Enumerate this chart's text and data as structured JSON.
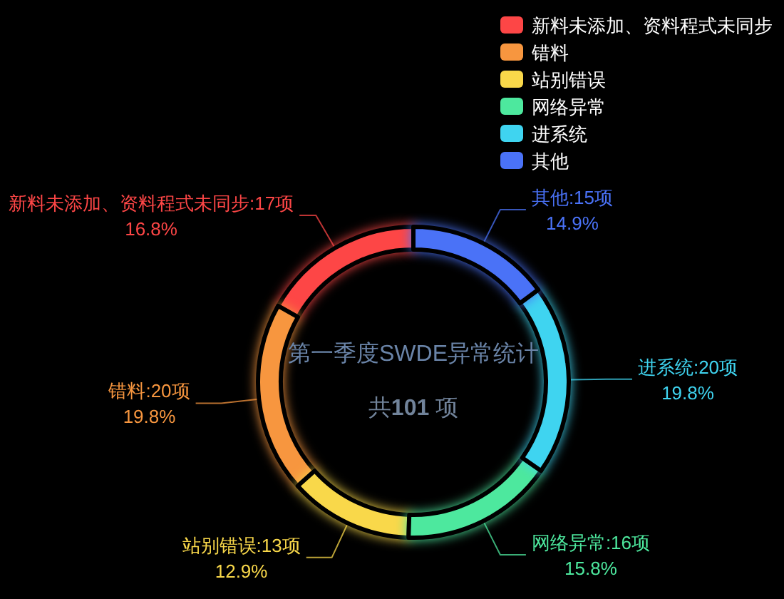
{
  "chart_data": {
    "type": "donut",
    "title": "第一季度SWDE异常统计",
    "subtitle": "共**101** 项",
    "categories": [
      "新料未添加、资料程式未同步",
      "错料",
      "站别错误",
      "网络异常",
      "进系统",
      "其他"
    ],
    "values": [
      17,
      20,
      13,
      16,
      20,
      15
    ],
    "colors": [
      "#fd4646",
      "#f7963f",
      "#f9d84a",
      "#4de89e",
      "#3fd4f0",
      "#4a72f7"
    ],
    "value_labels": [
      "新料未添加、资料程式未同步:17项\n16.8%",
      "错料:20项\n19.8%",
      "站别错误:13项\n12.9%",
      "网络异常:16项\n15.8%",
      "进系统:20项\n19.8%",
      "其他:15项\n14.9%"
    ],
    "legend": "top right"
  }
}
